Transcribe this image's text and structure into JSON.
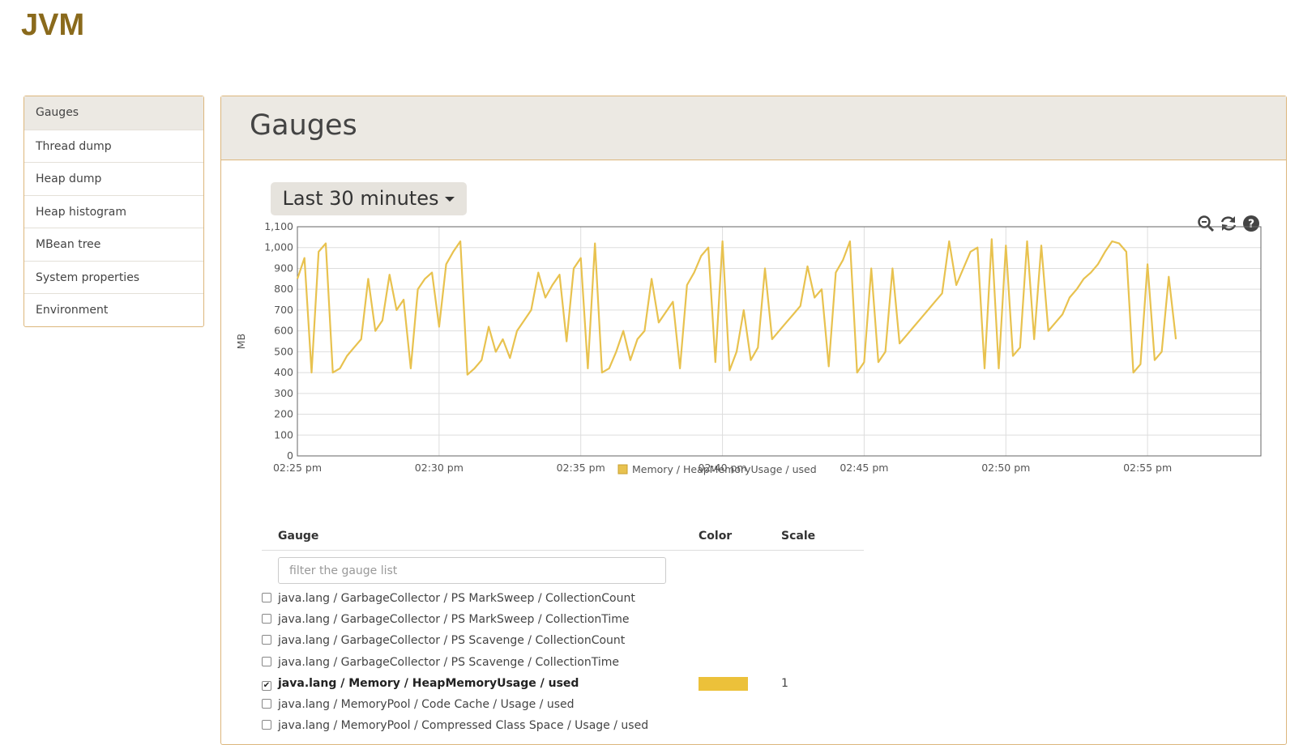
{
  "header": {
    "title": "JVM"
  },
  "sidebar": {
    "items": [
      "Gauges",
      "Thread dump",
      "Heap dump",
      "Heap histogram",
      "MBean tree",
      "System properties",
      "Environment"
    ]
  },
  "panel": {
    "title": "Gauges",
    "time_range": "Last 30 minutes"
  },
  "chart_data": {
    "type": "line",
    "y_label": "MB",
    "grid": true,
    "x": [
      25,
      25.25,
      25.5,
      25.75,
      26,
      26.25,
      26.5,
      26.75,
      27,
      27.25,
      27.5,
      27.75,
      28,
      28.25,
      28.5,
      28.75,
      29,
      29.25,
      29.5,
      29.75,
      30,
      30.25,
      30.5,
      30.75,
      31,
      31.25,
      31.5,
      31.75,
      32,
      32.25,
      32.5,
      32.75,
      33,
      33.25,
      33.5,
      33.75,
      34,
      34.25,
      34.5,
      34.75,
      35,
      35.25,
      35.5,
      35.75,
      36,
      36.25,
      36.5,
      36.75,
      37,
      37.25,
      37.5,
      37.75,
      38,
      38.25,
      38.5,
      38.75,
      39,
      39.25,
      39.5,
      39.75,
      40,
      40.25,
      40.5,
      40.75,
      41,
      41.25,
      41.5,
      41.75,
      42,
      42.25,
      42.5,
      42.75,
      43,
      43.25,
      43.5,
      43.75,
      44,
      44.25,
      44.5,
      44.75,
      45,
      45.25,
      45.5,
      45.75,
      46,
      46.25,
      46.5,
      46.75,
      47,
      47.25,
      47.5,
      47.75,
      48,
      48.25,
      48.5,
      48.75,
      49,
      49.25,
      49.5,
      49.75,
      50,
      50.25,
      50.5,
      50.75,
      51,
      51.25,
      51.5,
      51.75,
      52,
      52.25,
      52.5,
      52.75,
      53,
      53.25,
      53.5,
      53.75,
      54,
      54.25,
      54.5,
      54.75,
      55,
      55.25,
      55.5,
      55.75,
      56
    ],
    "series": [
      {
        "name": "Memory / HeapMemoryUsage / used",
        "color": "#e8c24f",
        "values": [
          850,
          950,
          400,
          980,
          1020,
          400,
          420,
          480,
          520,
          560,
          850,
          600,
          650,
          870,
          700,
          750,
          420,
          800,
          850,
          880,
          620,
          920,
          980,
          1030,
          390,
          420,
          460,
          620,
          500,
          560,
          470,
          600,
          650,
          700,
          880,
          760,
          820,
          870,
          550,
          900,
          950,
          420,
          1020,
          400,
          420,
          500,
          600,
          460,
          560,
          600,
          850,
          640,
          690,
          740,
          420,
          820,
          880,
          960,
          1000,
          450,
          1030,
          410,
          500,
          700,
          460,
          520,
          900,
          560,
          600,
          640,
          680,
          720,
          910,
          760,
          800,
          430,
          880,
          940,
          1030,
          400,
          450,
          900,
          450,
          500,
          900,
          540,
          580,
          620,
          660,
          700,
          740,
          780,
          1030,
          820,
          900,
          980,
          1000,
          420,
          1040,
          420,
          1010,
          480,
          520,
          1030,
          560,
          1010,
          600,
          640,
          680,
          760,
          800,
          850,
          880,
          920,
          980,
          1030,
          1020,
          980,
          400,
          440,
          920,
          460,
          500,
          860,
          560
        ]
      }
    ],
    "xlim": [
      25,
      59
    ],
    "xticks": [
      {
        "value": 25,
        "label": "02:25 pm"
      },
      {
        "value": 30,
        "label": "02:30 pm"
      },
      {
        "value": 35,
        "label": "02:35 pm"
      },
      {
        "value": 40,
        "label": "02:40 pm"
      },
      {
        "value": 45,
        "label": "02:45 pm"
      },
      {
        "value": 50,
        "label": "02:50 pm"
      },
      {
        "value": 55,
        "label": "02:55 pm"
      }
    ],
    "ylim": [
      0,
      1100
    ],
    "yticks": [
      0,
      100,
      200,
      300,
      400,
      500,
      600,
      700,
      800,
      900,
      {
        "value": 1000,
        "label": "1,000"
      },
      {
        "value": 1100,
        "label": "1,100"
      }
    ]
  },
  "table": {
    "headers": [
      "Gauge",
      "Color",
      "Scale"
    ],
    "filter_placeholder": "filter the gauge list",
    "rows": [
      {
        "label": "java.lang / GarbageCollector / PS MarkSweep / CollectionCount",
        "checked": false
      },
      {
        "label": "java.lang / GarbageCollector / PS MarkSweep / CollectionTime",
        "checked": false
      },
      {
        "label": "java.lang / GarbageCollector / PS Scavenge / CollectionCount",
        "checked": false
      },
      {
        "label": "java.lang / GarbageCollector / PS Scavenge / CollectionTime",
        "checked": false
      },
      {
        "label": "java.lang / Memory / HeapMemoryUsage / used",
        "checked": true,
        "color": "#ecc13a",
        "scale": 1
      },
      {
        "label": "java.lang / MemoryPool / Code Cache / Usage / used",
        "checked": false
      },
      {
        "label": "java.lang / MemoryPool / Compressed Class Space / Usage / used",
        "checked": false
      }
    ]
  }
}
